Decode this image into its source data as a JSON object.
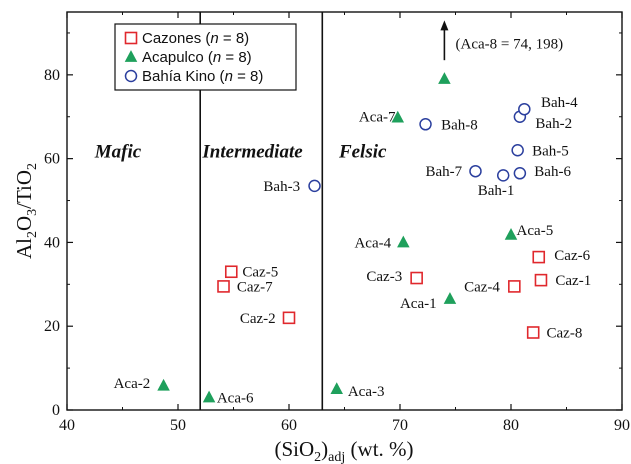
{
  "chart_data": {
    "type": "scatter",
    "x_axis": {
      "label_parts": [
        "(SiO",
        "2",
        ")",
        "adj",
        " (wt. %)"
      ],
      "range": [
        40,
        90
      ],
      "ticks": [
        "40",
        "50",
        "60",
        "70",
        "80",
        "90"
      ]
    },
    "y_axis": {
      "label_parts": [
        "Al",
        "2",
        "O",
        "3",
        "/TiO",
        "2"
      ],
      "range": [
        0,
        95
      ],
      "ticks": [
        "0",
        "20",
        "40",
        "60",
        "80"
      ]
    },
    "boundaries_x": [
      52,
      63
    ],
    "regions": [
      {
        "id": "mafic",
        "label": "Mafic",
        "x": 42.5,
        "y": 62
      },
      {
        "id": "intermediate",
        "label": "Intermediate",
        "x": 52.2,
        "y": 62
      },
      {
        "id": "felsic",
        "label": "Felsic",
        "x": 64.5,
        "y": 62
      }
    ],
    "legend": {
      "placement": "top-left",
      "entries": [
        {
          "series": "Cazones",
          "name": "Cazones",
          "n_text": "n",
          "n_value": " = 8)"
        },
        {
          "series": "Acapulco",
          "name": "Acapulco",
          "n_text": "n",
          "n_value": " = 8)"
        },
        {
          "series": "Bahia_Kino",
          "name": "Bahía Kino",
          "n_text": "n",
          "n_value": " = 8)"
        }
      ]
    },
    "series": [
      {
        "key": "Cazones",
        "name": "Cazones",
        "marker": "square",
        "color": "#e0282d",
        "points": [
          {
            "label": "Caz-1",
            "x": 82.7,
            "y": 31,
            "lx": 84.0,
            "ly": 31,
            "anchor": "start"
          },
          {
            "label": "Caz-2",
            "x": 60.0,
            "y": 22,
            "lx": 58.8,
            "ly": 22,
            "anchor": "end"
          },
          {
            "label": "Caz-3",
            "x": 71.5,
            "y": 31.5,
            "lx": 70.2,
            "ly": 32,
            "anchor": "end"
          },
          {
            "label": "Caz-4",
            "x": 80.3,
            "y": 29.5,
            "lx": 79.0,
            "ly": 29.5,
            "anchor": "end"
          },
          {
            "label": "Caz-5",
            "x": 54.8,
            "y": 33,
            "lx": 55.8,
            "ly": 33,
            "anchor": "start"
          },
          {
            "label": "Caz-6",
            "x": 82.5,
            "y": 36.5,
            "lx": 83.9,
            "ly": 37,
            "anchor": "start"
          },
          {
            "label": "Caz-7",
            "x": 54.1,
            "y": 29.5,
            "lx": 55.3,
            "ly": 29.5,
            "anchor": "start"
          },
          {
            "label": "Caz-8",
            "x": 82.0,
            "y": 18.5,
            "lx": 83.2,
            "ly": 18.5,
            "anchor": "start"
          }
        ]
      },
      {
        "key": "Acapulco",
        "name": "Acapulco",
        "marker": "triangle",
        "color": "#1fa05c",
        "points": [
          {
            "label": "Aca-1",
            "x": 74.5,
            "y": 26.5,
            "lx": 73.3,
            "ly": 25.5,
            "anchor": "end"
          },
          {
            "label": "Aca-2",
            "x": 48.7,
            "y": 5.8,
            "lx": 47.5,
            "ly": 6.5,
            "anchor": "end"
          },
          {
            "label": "Aca-3",
            "x": 64.3,
            "y": 5.0,
            "lx": 65.3,
            "ly": 4.5,
            "anchor": "start"
          },
          {
            "label": "Aca-4",
            "x": 70.3,
            "y": 40.0,
            "lx": 69.2,
            "ly": 40,
            "anchor": "end"
          },
          {
            "label": "Aca-5",
            "x": 80.0,
            "y": 41.8,
            "lx": 80.5,
            "ly": 43,
            "anchor": "start"
          },
          {
            "label": "Aca-6",
            "x": 52.8,
            "y": 3.0,
            "lx": 53.5,
            "ly": 3.0,
            "anchor": "start"
          },
          {
            "label": "Aca-7",
            "x": 69.8,
            "y": 69.8,
            "lx": 69.6,
            "ly": 70,
            "anchor": "end"
          },
          {
            "label": "Aca-8",
            "x": 74.0,
            "y": 79.0,
            "lx": null,
            "ly": null,
            "anchor": "start"
          }
        ]
      },
      {
        "key": "Bahia_Kino",
        "name": "Bahía Kino",
        "marker": "circle",
        "color": "#2b3f9e",
        "points": [
          {
            "label": "Bah-1",
            "x": 79.3,
            "y": 56.0,
            "lx": 77.0,
            "ly": 52.5,
            "anchor": "start"
          },
          {
            "label": "Bah-2",
            "x": 80.8,
            "y": 70.0,
            "lx": 82.2,
            "ly": 68.5,
            "anchor": "start"
          },
          {
            "label": "Bah-3",
            "x": 62.3,
            "y": 53.5,
            "lx": 61.0,
            "ly": 53.5,
            "anchor": "end"
          },
          {
            "label": "Bah-4",
            "x": 81.2,
            "y": 71.8,
            "lx": 82.7,
            "ly": 73.5,
            "anchor": "start"
          },
          {
            "label": "Bah-5",
            "x": 80.6,
            "y": 62.0,
            "lx": 81.9,
            "ly": 62,
            "anchor": "start"
          },
          {
            "label": "Bah-6",
            "x": 80.8,
            "y": 56.5,
            "lx": 82.1,
            "ly": 57,
            "anchor": "start"
          },
          {
            "label": "Bah-7",
            "x": 76.8,
            "y": 57.0,
            "lx": 75.6,
            "ly": 57,
            "anchor": "end"
          },
          {
            "label": "Bah-8",
            "x": 72.3,
            "y": 68.2,
            "lx": 73.7,
            "ly": 68.2,
            "anchor": "start"
          }
        ]
      }
    ],
    "off_scale_note": {
      "text": "(Aca-8 = 74, 198)",
      "arrow_x": 74.0,
      "arrow_from_y": 83.5,
      "arrow_to_y": 93.0,
      "text_x": 75.0,
      "text_y": 87.5
    }
  }
}
